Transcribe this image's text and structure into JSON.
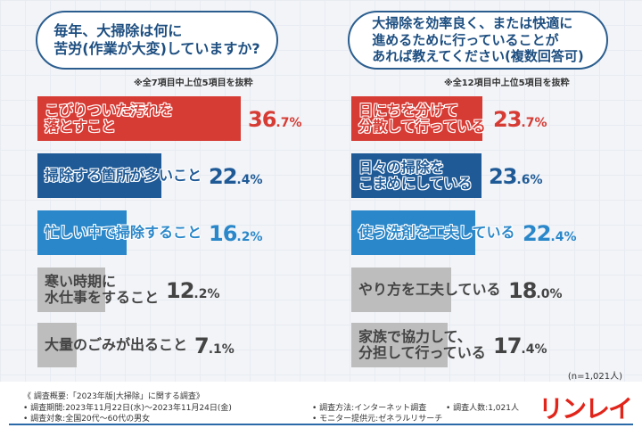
{
  "chart_data": [
    {
      "type": "bar",
      "title": "毎年、大掃除は何に\n苦労(作業が大変)していますか?",
      "note": "※全7項目中上位5項目を抜粋",
      "unit": "%",
      "categories": [
        "こびりついた汚れを\n落とすこと",
        "掃除する箇所が多いこと",
        "忙しい中で掃除すること",
        "寒い時期に\n水仕事をすること",
        "大量のごみが出ること"
      ],
      "values": [
        "36.7",
        "22.4",
        "16.2",
        "12.2",
        "7.1"
      ],
      "colors": [
        "#d63b34",
        "#1f5a96",
        "#2a87c9",
        "#bdbdbd",
        "#bdbdbd"
      ]
    },
    {
      "type": "bar",
      "title": "大掃除を効率良く、または快適に\n進めるために行っていることが\nあれば教えてください(複数回答可)",
      "note": "※全12項目中上位5項目を抜粋",
      "unit": "%",
      "categories": [
        "日にちを分けて\n分散して行っている",
        "日々の掃除を\nこまめにしている",
        "使う洗剤を工夫している",
        "やり方を工夫している",
        "家族で協力して、\n分担して行っている"
      ],
      "values": [
        "23.7",
        "23.6",
        "22.4",
        "18.0",
        "17.4"
      ],
      "colors": [
        "#d63b34",
        "#1f5a96",
        "#2a87c9",
        "#bdbdbd",
        "#bdbdbd"
      ]
    }
  ],
  "sample_note": "(n=1,021人)",
  "footer": {
    "summary": "《 調査概要:「2023年版|大掃除」に関する調査》",
    "period": "• 調査期間:2023年11月22日(水)〜2023年11月24日(金)",
    "target": "• 調査対象:全国20代〜60代の男女",
    "method": "• 調査方法:インターネット調査",
    "provider": "• モニター提供元:ゼネラルリサーチ",
    "count": "• 調査人数:1,021人"
  },
  "logo": "リンレイ"
}
